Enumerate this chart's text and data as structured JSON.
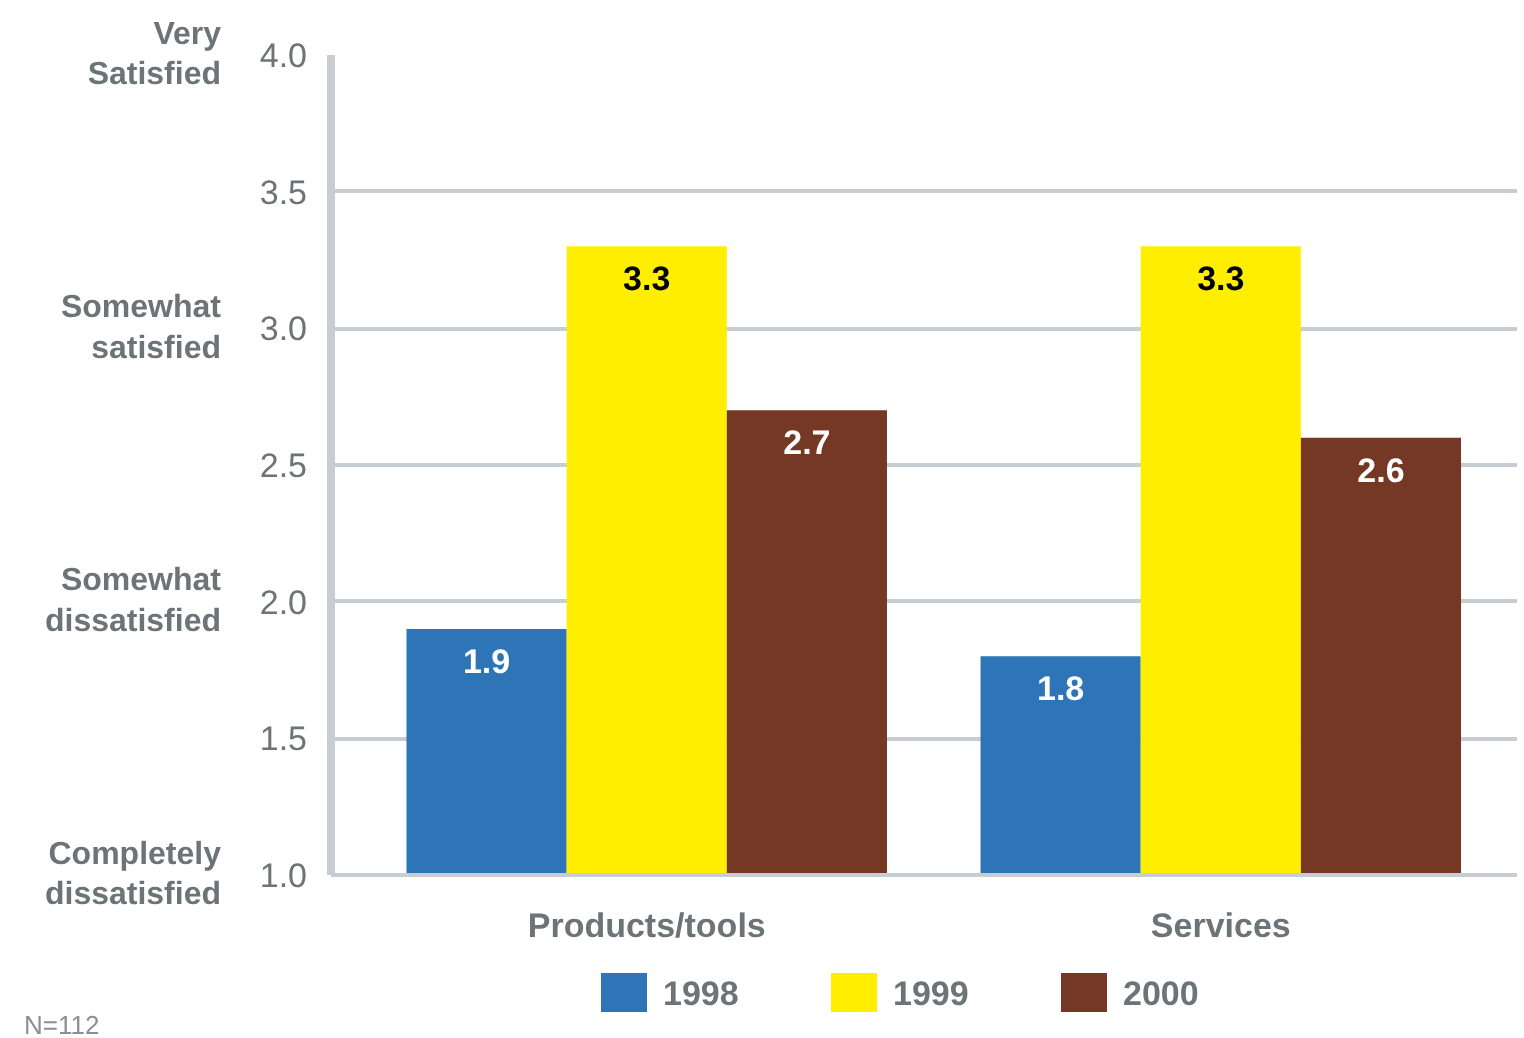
{
  "chart_data": {
    "type": "bar",
    "categories": [
      "Products/tools",
      "Services"
    ],
    "series": [
      {
        "name": "1998",
        "color": "#2e75b8",
        "values": [
          1.9,
          1.8
        ]
      },
      {
        "name": "1999",
        "color": "#ffee00",
        "values": [
          3.3,
          3.3
        ]
      },
      {
        "name": "2000",
        "color": "#753825",
        "values": [
          2.7,
          2.6
        ]
      }
    ],
    "ylim": [
      1,
      4
    ],
    "yticks": [
      {
        "value": 1,
        "label": "1.0"
      },
      {
        "value": 1.5,
        "label": "1.5"
      },
      {
        "value": 2,
        "label": "2.0"
      },
      {
        "value": 2.5,
        "label": "2.5"
      },
      {
        "value": 3,
        "label": "3.0"
      },
      {
        "value": 3.5,
        "label": "3.5"
      },
      {
        "value": 4,
        "label": "4.0"
      }
    ],
    "grid": "y",
    "legend": "bottom",
    "data_labels": true,
    "annotations": [
      "Very\nSatisfied",
      "Somewhat\nsatisfied",
      "Somewhat\ndissatisfied",
      "Completely\ndissatisfied",
      "N=112"
    ]
  }
}
